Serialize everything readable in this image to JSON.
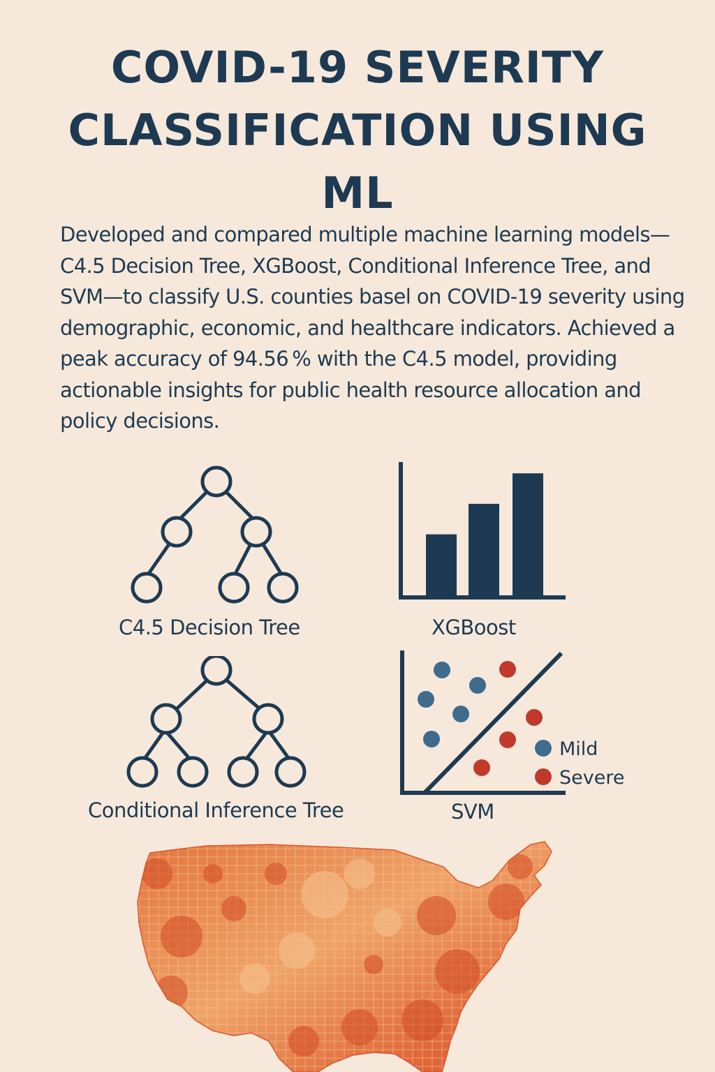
{
  "title": "COVID-19 SEVERITY CLASSIFICATION USING ML",
  "description": "Developed and compared multiple machine learning models—C4.5 Decision Tree, XGBoost, Conditional Inference Tree, and SVM—to classify U.S. counties basel on COVID-19 severity using demographic, economic, and healthcare indicators. Achieved a peak accuracy of 94.56 % with the C4.5 model, providing actionable insights for public health resource allocation and policy decisions.",
  "models": {
    "c45": {
      "label": "C4.5 Decision Tree",
      "icon": "tree-icon"
    },
    "xgboost": {
      "label": "XGBoost",
      "icon": "bar-chart-icon",
      "bar_levels": [
        0.46,
        0.69,
        0.92
      ]
    },
    "cit": {
      "label": "Conditional Inference Tree",
      "icon": "tree-icon"
    },
    "svm": {
      "label": "SVM",
      "icon": "scatter-plot-icon"
    }
  },
  "legend": {
    "mild": "Mild",
    "severe": "Severe"
  },
  "colors": {
    "background": "#f6e9db",
    "navy": "#1e3a52",
    "mild": "#3f6b8c",
    "severe": "#c0392b",
    "map_light": "#f2b27a",
    "map_dark": "#d9552e"
  },
  "map": {
    "icon": "us-county-map-icon"
  }
}
